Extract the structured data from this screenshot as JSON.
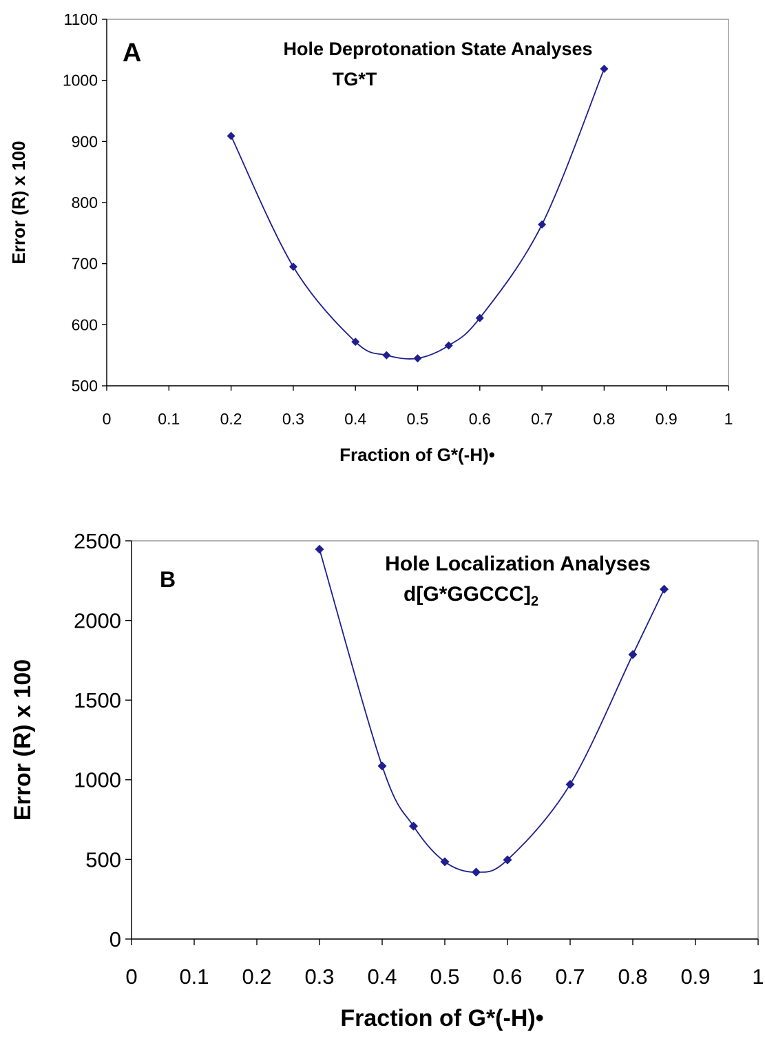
{
  "chart_data": [
    {
      "type": "scatter",
      "panel_label": "A",
      "title": "Hole Deprotonation State Analyses",
      "subtitle": "TG*T",
      "xlabel": "Fraction of G*(-H)•",
      "ylabel": "Error (R) x 100",
      "xlim": [
        0,
        1
      ],
      "ylim": [
        500,
        1100
      ],
      "x_ticks": [
        "0",
        "0.1",
        "0.2",
        "0.3",
        "0.4",
        "0.5",
        "0.6",
        "0.7",
        "0.8",
        "0.9",
        "1"
      ],
      "y_ticks": [
        "500",
        "600",
        "700",
        "800",
        "900",
        "1000",
        "1100"
      ],
      "grid": false,
      "smooth_line": true,
      "series": [
        {
          "color": "#1F1F8F",
          "marker": "diamond",
          "x": [
            0.2,
            0.3,
            0.4,
            0.45,
            0.5,
            0.55,
            0.6,
            0.7,
            0.8
          ],
          "y": [
            909,
            695,
            572,
            550,
            545,
            566,
            611,
            764,
            1019
          ]
        }
      ]
    },
    {
      "type": "scatter",
      "panel_label": "B",
      "title": "Hole Localization Analyses",
      "subtitle": "d[G*GGCCC]",
      "subtitle_subscript": "2",
      "xlabel": "Fraction of G*(-H)•",
      "ylabel": "Error (R) x 100",
      "xlim": [
        0,
        1
      ],
      "ylim": [
        0,
        2500
      ],
      "x_ticks": [
        "0",
        "0.1",
        "0.2",
        "0.3",
        "0.4",
        "0.5",
        "0.6",
        "0.7",
        "0.8",
        "0.9",
        "1"
      ],
      "y_ticks": [
        "0",
        "500",
        "1000",
        "1500",
        "2000",
        "2500"
      ],
      "grid": false,
      "smooth_line": true,
      "series": [
        {
          "color": "#1F1F8F",
          "marker": "diamond",
          "x": [
            0.3,
            0.4,
            0.45,
            0.5,
            0.55,
            0.6,
            0.7,
            0.8,
            0.85
          ],
          "y": [
            2447,
            1086,
            709,
            485,
            420,
            497,
            971,
            1786,
            2196
          ]
        }
      ]
    }
  ]
}
